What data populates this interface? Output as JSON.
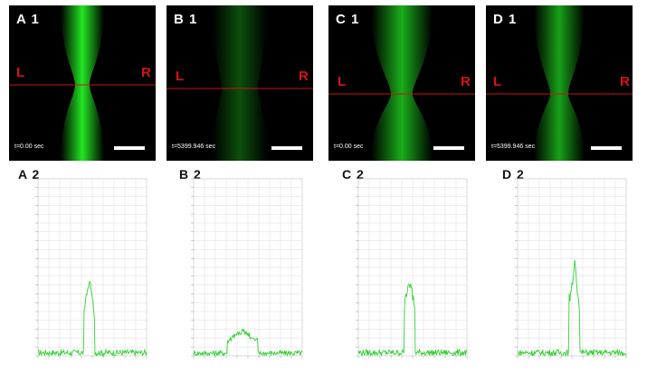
{
  "panels": [
    {
      "id": "A",
      "label": "A 1",
      "left_marker": "L",
      "right_marker": "R",
      "time": "t=0.00 sec",
      "profile_label": "A 2",
      "brightness": 1.0
    },
    {
      "id": "B",
      "label": "B 1",
      "left_marker": "L",
      "right_marker": "R",
      "time": "t=5399.946 sec",
      "profile_label": "B 2",
      "brightness": 0.35
    },
    {
      "id": "C",
      "label": "C 1",
      "left_marker": "L",
      "right_marker": "R",
      "time": "t=0.00 sec",
      "profile_label": "C 2",
      "brightness": 0.75
    },
    {
      "id": "D",
      "label": "D 1",
      "left_marker": "L",
      "right_marker": "R",
      "time": "t=5399.946 sec",
      "profile_label": "D 2",
      "brightness": 0.7
    }
  ],
  "colors": {
    "fluorescence": "#22e622",
    "line": "#c81414",
    "profile": "#34d134",
    "grid": "#dddddd"
  },
  "profile_peaks": [
    {
      "center": 0.47,
      "width": 0.05,
      "height": 0.45,
      "noise": 0.035
    },
    {
      "center": 0.45,
      "width": 0.14,
      "height": 0.14,
      "noise": 0.03
    },
    {
      "center": 0.47,
      "width": 0.05,
      "height": 0.49,
      "noise": 0.035
    },
    {
      "center": 0.52,
      "width": 0.05,
      "height": 0.55,
      "noise": 0.035
    }
  ]
}
